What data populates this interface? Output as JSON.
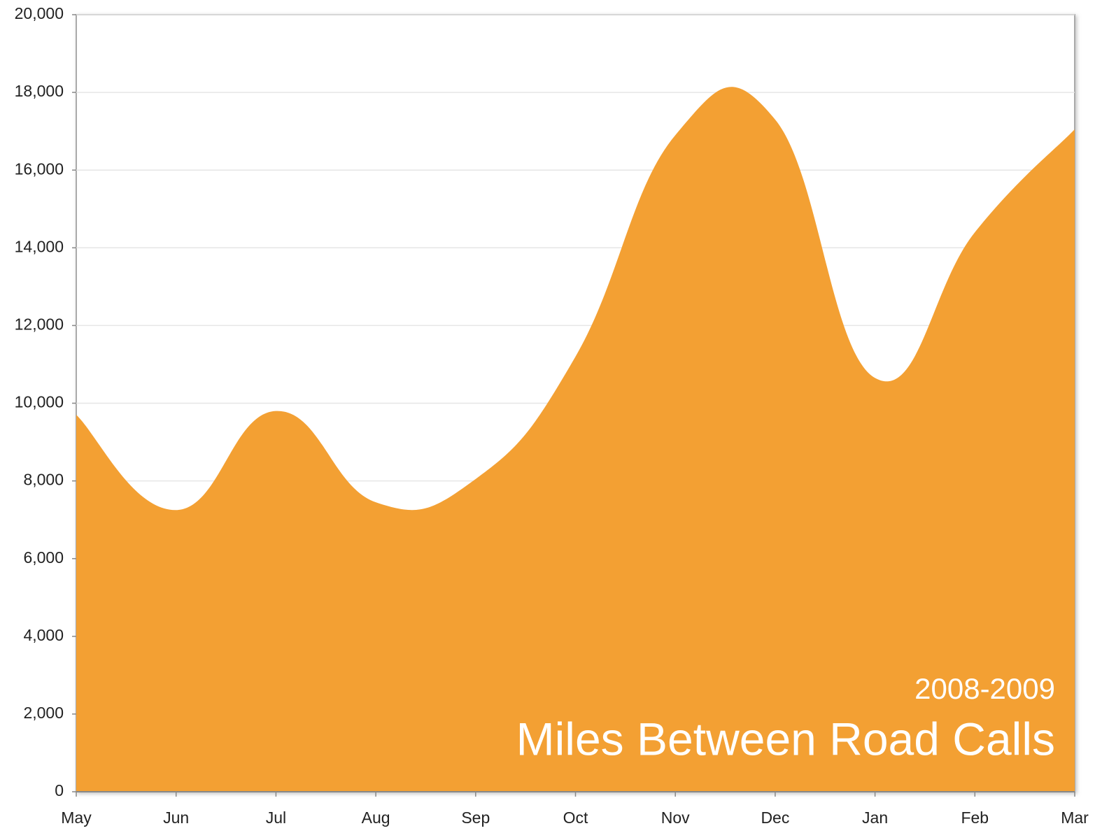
{
  "chart_data": {
    "type": "area",
    "title": "Miles Between Road Calls",
    "subtitle": "2008-2009",
    "categories": [
      "May",
      "Jun",
      "Jul",
      "Aug",
      "Sep",
      "Oct",
      "Nov",
      "Dec",
      "Jan",
      "Feb",
      "Mar"
    ],
    "values": [
      9700,
      7250,
      9800,
      7450,
      8050,
      11200,
      16900,
      17300,
      10650,
      14400,
      17050
    ],
    "color": "#f3a033",
    "ylim": [
      0,
      20000
    ],
    "yticks": [
      0,
      {
        "value": 2000,
        "label": "2,000"
      },
      {
        "value": 4000,
        "label": "4,000"
      },
      {
        "value": 6000,
        "label": "6,000"
      },
      {
        "value": 8000,
        "label": "8,000"
      },
      {
        "value": 10000,
        "label": "10,000"
      },
      {
        "value": 12000,
        "label": "12,000"
      },
      {
        "value": 14000,
        "label": "14,000"
      },
      {
        "value": 16000,
        "label": "16,000"
      },
      {
        "value": 18000,
        "label": "18,000"
      },
      {
        "value": 20000,
        "label": "20,000"
      }
    ],
    "grid": true
  }
}
